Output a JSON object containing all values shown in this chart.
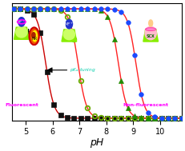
{
  "xlabel": "pH",
  "xlim": [
    4.5,
    10.8
  ],
  "ylim": [
    -0.02,
    1.05
  ],
  "background_color": "#ffffff",
  "curve_line_color": "#ff2222",
  "n_hill": 2.8,
  "pkas": [
    5.75,
    6.95,
    8.45,
    9.1
  ],
  "markers": [
    "s",
    "o",
    "^",
    "o"
  ],
  "marker_colors": [
    "#111111",
    "#6aaa00",
    "#228b00",
    "#1a4aff"
  ],
  "marker_fcs": [
    "#111111",
    "none",
    "#228b00",
    "#1a4aff"
  ],
  "marker_ews": [
    0.5,
    1.3,
    0.5,
    0.5
  ],
  "marker_size": 4,
  "annotation_fluorescent": "Fluorescent",
  "annotation_fluorescent_color": "#ff00ff",
  "annotation_nonfluorescent": "Non-fluorescent",
  "annotation_nonfluorescent_color": "#ff00ff",
  "annotation_pka_color": "#00ccaa",
  "xlabel_size": 9,
  "tick_label_size": 7
}
